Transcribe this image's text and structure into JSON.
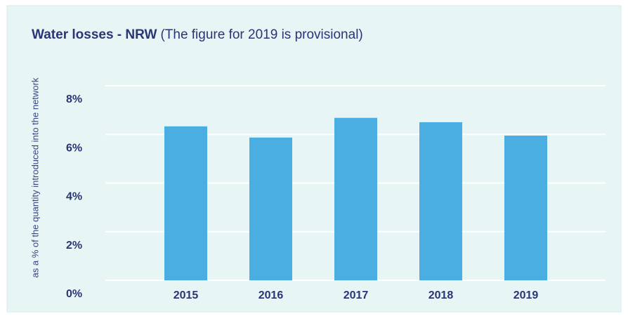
{
  "chart_data": {
    "type": "bar",
    "title": "Water losses - NRW",
    "subtitle": "(The figure for 2019 is provisional)",
    "y_axis_label": "as a % of the quantity introduced into the network",
    "categories": [
      "2015",
      "2016",
      "2017",
      "2018",
      "2019"
    ],
    "values": [
      6.33,
      5.87,
      6.68,
      6.5,
      5.95
    ],
    "color": "#4aaee0",
    "ylim": [
      0,
      8
    ],
    "yticks": [
      {
        "value": 0,
        "label": "0%"
      },
      {
        "value": 2,
        "label": "2%"
      },
      {
        "value": 4,
        "label": "4%"
      },
      {
        "value": 6,
        "label": "6%"
      },
      {
        "value": 8,
        "label": "8%"
      }
    ],
    "grid": true
  }
}
